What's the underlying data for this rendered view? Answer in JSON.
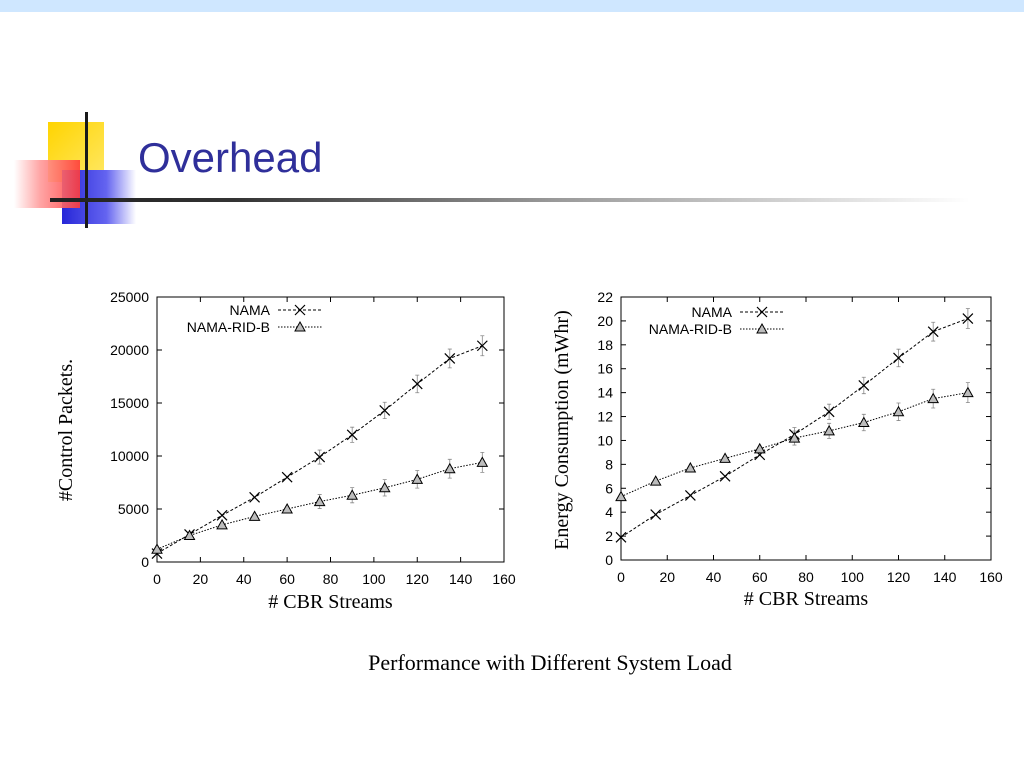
{
  "slide": {
    "title": "Overhead",
    "caption": "Performance with Different System Load"
  },
  "chart_data": [
    {
      "type": "line",
      "xlabel": "# CBR Streams",
      "ylabel": "#Control Packets.",
      "xlim": [
        0,
        160
      ],
      "ylim": [
        0,
        25000
      ],
      "xticks": [
        0,
        20,
        40,
        60,
        80,
        100,
        120,
        140,
        160
      ],
      "yticks": [
        0,
        5000,
        10000,
        15000,
        20000,
        25000
      ],
      "legend_position": "top-left",
      "grid": false,
      "series": [
        {
          "name": "NAMA",
          "marker": "x",
          "x": [
            0,
            15,
            30,
            45,
            60,
            75,
            90,
            105,
            120,
            135,
            150
          ],
          "y": [
            800,
            2600,
            4400,
            6100,
            8000,
            9900,
            12000,
            14300,
            16800,
            19200,
            20400
          ]
        },
        {
          "name": "NAMA-RID-B",
          "marker": "triangle",
          "x": [
            0,
            15,
            30,
            45,
            60,
            75,
            90,
            105,
            120,
            135,
            150
          ],
          "y": [
            1200,
            2500,
            3500,
            4300,
            5000,
            5700,
            6300,
            7000,
            7800,
            8800,
            9400
          ]
        }
      ]
    },
    {
      "type": "line",
      "xlabel": "# CBR Streams",
      "ylabel": "Energy Consumption (mWhr)",
      "xlim": [
        0,
        160
      ],
      "ylim": [
        0,
        22
      ],
      "xticks": [
        0,
        20,
        40,
        60,
        80,
        100,
        120,
        140,
        160
      ],
      "yticks": [
        0,
        2,
        4,
        6,
        8,
        10,
        12,
        14,
        16,
        18,
        20,
        22
      ],
      "legend_position": "top-left",
      "grid": false,
      "series": [
        {
          "name": "NAMA",
          "marker": "x",
          "x": [
            0,
            15,
            30,
            45,
            60,
            75,
            90,
            105,
            120,
            135,
            150
          ],
          "y": [
            1.9,
            3.8,
            5.4,
            7.0,
            8.8,
            10.5,
            12.4,
            14.6,
            16.9,
            19.1,
            20.2
          ]
        },
        {
          "name": "NAMA-RID-B",
          "marker": "triangle",
          "x": [
            0,
            15,
            30,
            45,
            60,
            75,
            90,
            105,
            120,
            135,
            150
          ],
          "y": [
            5.3,
            6.6,
            7.7,
            8.5,
            9.3,
            10.2,
            10.8,
            11.5,
            12.4,
            13.5,
            14.0
          ]
        }
      ]
    }
  ]
}
